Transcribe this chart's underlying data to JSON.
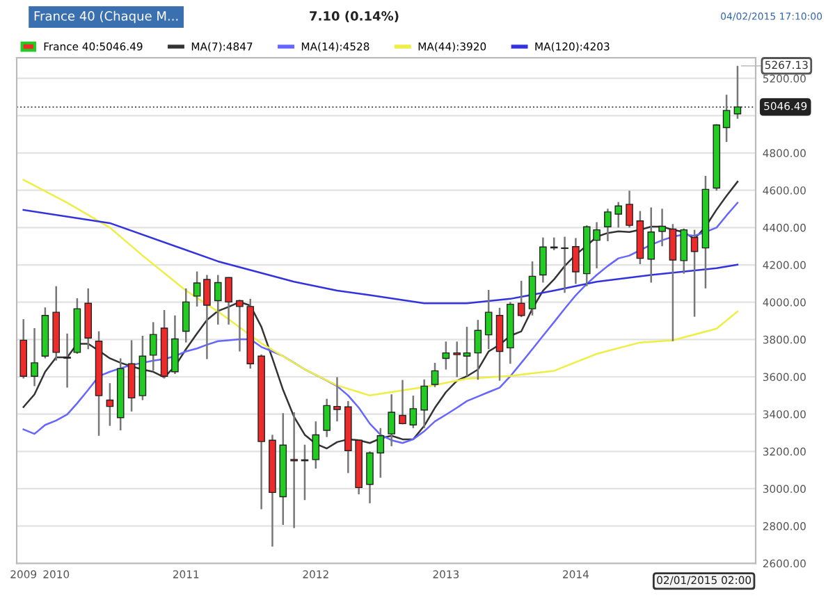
{
  "chart_data": {
    "type": "candlestick",
    "title": "France 40 (Chaque M...",
    "subtitle": "7.10 (0.14%)",
    "x": [
      "2009-10",
      "2009-11",
      "2009-12",
      "2010-01",
      "2010-02",
      "2010-03",
      "2010-04",
      "2010-05",
      "2010-06",
      "2010-07",
      "2010-08",
      "2010-09",
      "2010-10",
      "2010-11",
      "2010-12",
      "2011-01",
      "2011-02",
      "2011-03",
      "2011-04",
      "2011-05",
      "2011-06",
      "2011-07",
      "2011-08",
      "2011-09",
      "2011-10",
      "2011-11",
      "2011-12",
      "2012-01",
      "2012-02",
      "2012-03",
      "2012-04",
      "2012-05",
      "2012-06",
      "2012-07",
      "2012-08",
      "2012-09",
      "2012-10",
      "2012-11",
      "2012-12",
      "2013-01",
      "2013-02",
      "2013-03",
      "2013-04",
      "2013-05",
      "2013-06",
      "2013-07",
      "2013-08",
      "2013-09",
      "2013-10",
      "2013-11",
      "2013-12",
      "2014-01",
      "2014-02",
      "2014-03",
      "2014-04",
      "2014-05",
      "2014-06",
      "2014-07",
      "2014-08",
      "2014-09",
      "2014-10",
      "2014-11",
      "2014-12",
      "2015-01",
      "2015-02",
      "2015-03",
      "2015-04"
    ],
    "series": [
      {
        "name": "France 40:5046.49",
        "ohlc": [
          [
            3796,
            3909,
            3591,
            3603
          ],
          [
            3603,
            3861,
            3550,
            3675
          ],
          [
            3711,
            3972,
            3699,
            3929
          ],
          [
            3946,
            4086,
            3687,
            3731
          ],
          [
            3705,
            3832,
            3542,
            3700
          ],
          [
            3731,
            4021,
            3723,
            3965
          ],
          [
            3994,
            4074,
            3748,
            3808
          ],
          [
            3791,
            3844,
            3284,
            3499
          ],
          [
            3475,
            3566,
            3337,
            3441
          ],
          [
            3381,
            3699,
            3313,
            3644
          ],
          [
            3670,
            3796,
            3414,
            3487
          ],
          [
            3499,
            3820,
            3475,
            3711
          ],
          [
            3716,
            3893,
            3634,
            3827
          ],
          [
            3861,
            3958,
            3591,
            3603
          ],
          [
            3627,
            3929,
            3615,
            3803
          ],
          [
            3844,
            4074,
            3784,
            4001
          ],
          [
            4033,
            4165,
            3977,
            4103
          ],
          [
            4122,
            4146,
            3695,
            3984
          ],
          [
            4008,
            4146,
            3880,
            4105
          ],
          [
            4132,
            4134,
            3880,
            4001
          ],
          [
            4008,
            4013,
            3736,
            3977
          ],
          [
            3977,
            4018,
            3644,
            3670
          ],
          [
            3711,
            3720,
            2890,
            3253
          ],
          [
            3260,
            3289,
            2690,
            2980
          ],
          [
            2957,
            3405,
            2806,
            3234
          ],
          [
            3157,
            3410,
            2789,
            3150
          ],
          [
            3150,
            3236,
            2939,
            3155
          ],
          [
            3156,
            3361,
            3108,
            3289
          ],
          [
            3313,
            3482,
            3277,
            3446
          ],
          [
            3441,
            3598,
            3361,
            3425
          ],
          [
            3439,
            3470,
            3084,
            3204
          ],
          [
            3260,
            3265,
            2970,
            3006
          ],
          [
            3023,
            3200,
            2922,
            3192
          ],
          [
            3192,
            3325,
            3059,
            3284
          ],
          [
            3294,
            3506,
            3228,
            3410
          ],
          [
            3393,
            3583,
            3345,
            3349
          ],
          [
            3342,
            3499,
            3325,
            3429
          ],
          [
            3422,
            3586,
            3325,
            3550
          ],
          [
            3559,
            3675,
            3545,
            3632
          ],
          [
            3699,
            3789,
            3639,
            3728
          ],
          [
            3728,
            3789,
            3598,
            3719
          ],
          [
            3711,
            3868,
            3603,
            3728
          ],
          [
            3728,
            3905,
            3584,
            3849
          ],
          [
            3825,
            4066,
            3748,
            3946
          ],
          [
            3929,
            3970,
            3579,
            3736
          ],
          [
            3755,
            4001,
            3670,
            3989
          ],
          [
            3994,
            4115,
            3920,
            3929
          ],
          [
            3965,
            4219,
            3929,
            4139
          ],
          [
            4146,
            4347,
            4105,
            4296
          ],
          [
            4296,
            4347,
            4279,
            4291
          ],
          [
            4291,
            4351,
            4050,
            4288
          ],
          [
            4298,
            4344,
            4098,
            4163
          ],
          [
            4153,
            4412,
            4086,
            4404
          ],
          [
            4332,
            4429,
            4182,
            4388
          ],
          [
            4404,
            4501,
            4327,
            4484
          ],
          [
            4472,
            4537,
            4400,
            4516
          ],
          [
            4525,
            4598,
            4400,
            4412
          ],
          [
            4436,
            4489,
            4204,
            4235
          ],
          [
            4231,
            4508,
            4105,
            4376
          ],
          [
            4380,
            4501,
            4300,
            4407
          ],
          [
            4392,
            4419,
            3791,
            4226
          ],
          [
            4223,
            4395,
            4153,
            4388
          ],
          [
            4347,
            4388,
            3922,
            4272
          ],
          [
            4291,
            4677,
            4074,
            4605
          ],
          [
            4612,
            4955,
            4598,
            4950
          ],
          [
            4936,
            5112,
            4859,
            5028
          ],
          [
            5010,
            5267.13,
            4984,
            5046.49
          ]
        ],
        "colors": [
          "#ee2b2b",
          "#22cc22",
          "#22cc22",
          "#ee2b2b",
          "#ee2b2b",
          "#22cc22",
          "#ee2b2b",
          "#ee2b2b",
          "#ee2b2b",
          "#22cc22",
          "#ee2b2b",
          "#22cc22",
          "#22cc22",
          "#ee2b2b",
          "#22cc22",
          "#22cc22",
          "#22cc22",
          "#ee2b2b",
          "#22cc22",
          "#ee2b2b",
          "#ee2b2b",
          "#ee2b2b",
          "#ee2b2b",
          "#ee2b2b",
          "#22cc22",
          "#ee2b2b",
          "#22cc22",
          "#22cc22",
          "#22cc22",
          "#ee2b2b",
          "#ee2b2b",
          "#ee2b2b",
          "#22cc22",
          "#22cc22",
          "#22cc22",
          "#ee2b2b",
          "#22cc22",
          "#22cc22",
          "#22cc22",
          "#22cc22",
          "#ee2b2b",
          "#22cc22",
          "#22cc22",
          "#22cc22",
          "#ee2b2b",
          "#22cc22",
          "#ee2b2b",
          "#22cc22",
          "#22cc22",
          "#ee2b2b",
          "#ee2b2b",
          "#ee2b2b",
          "#22cc22",
          "#22cc22",
          "#22cc22",
          "#22cc22",
          "#ee2b2b",
          "#ee2b2b",
          "#22cc22",
          "#22cc22",
          "#ee2b2b",
          "#22cc22",
          "#ee2b2b",
          "#22cc22",
          "#22cc22",
          "#22cc22",
          "#22cc22"
        ]
      },
      {
        "name": "MA(7):4847",
        "type": "line",
        "color": "#333333",
        "x": [
          "2009-10",
          "2009-11",
          "2009-12",
          "2010-01",
          "2010-02",
          "2010-03",
          "2010-04",
          "2010-05",
          "2010-06",
          "2010-07",
          "2010-08",
          "2010-09",
          "2010-10",
          "2010-11",
          "2010-12",
          "2011-01",
          "2011-02",
          "2011-03",
          "2011-04",
          "2011-05",
          "2011-06",
          "2011-07",
          "2011-08",
          "2011-09",
          "2011-10",
          "2011-11",
          "2011-12",
          "2012-01",
          "2012-02",
          "2012-03",
          "2012-04",
          "2012-05",
          "2012-06",
          "2012-07",
          "2012-08",
          "2012-09",
          "2012-10",
          "2012-11",
          "2012-12",
          "2013-01",
          "2013-02",
          "2013-03",
          "2013-04",
          "2013-05",
          "2013-06",
          "2013-07",
          "2013-08",
          "2013-09",
          "2013-10",
          "2013-11",
          "2013-12",
          "2014-01",
          "2014-02",
          "2014-03",
          "2014-04",
          "2014-05",
          "2014-06",
          "2014-07",
          "2014-08",
          "2014-09",
          "2014-10",
          "2014-11",
          "2014-12",
          "2015-01",
          "2015-02",
          "2015-03",
          "2015-04"
        ],
        "values": [
          3438,
          3506,
          3627,
          3704,
          3704,
          3777,
          3777,
          3740,
          3699,
          3675,
          3656,
          3639,
          3627,
          3598,
          3656,
          3748,
          3832,
          3905,
          3953,
          3975,
          4001,
          3982,
          3868,
          3699,
          3530,
          3385,
          3289,
          3241,
          3216,
          3250,
          3265,
          3260,
          3245,
          3270,
          3284,
          3265,
          3265,
          3337,
          3434,
          3518,
          3579,
          3603,
          3639,
          3736,
          3772,
          3820,
          3844,
          3965,
          4062,
          4122,
          4194,
          4255,
          4303,
          4351,
          4371,
          4380,
          4376,
          4388,
          4405,
          4405,
          4388,
          4376,
          4339,
          4405,
          4496,
          4570,
          4646
        ]
      },
      {
        "name": "MA(14):4528",
        "type": "line",
        "color": "#6666ff",
        "x": [
          "2009-10",
          "2009-11",
          "2009-12",
          "2010-01",
          "2010-02",
          "2010-03",
          "2010-04",
          "2010-05",
          "2010-06",
          "2010-07",
          "2010-08",
          "2010-09",
          "2010-10",
          "2010-11",
          "2010-12",
          "2011-01",
          "2011-02",
          "2011-03",
          "2011-04",
          "2011-05",
          "2011-06",
          "2011-07",
          "2011-08",
          "2011-09",
          "2011-10",
          "2011-11",
          "2011-12",
          "2012-01",
          "2012-02",
          "2012-03",
          "2012-04",
          "2012-05",
          "2012-06",
          "2012-07",
          "2012-08",
          "2012-09",
          "2012-10",
          "2012-11",
          "2012-12",
          "2013-01",
          "2013-02",
          "2013-03",
          "2013-04",
          "2013-05",
          "2013-06",
          "2013-07",
          "2013-08",
          "2013-09",
          "2013-10",
          "2013-11",
          "2013-12",
          "2014-01",
          "2014-02",
          "2014-03",
          "2014-04",
          "2014-05",
          "2014-06",
          "2014-07",
          "2014-08",
          "2014-09",
          "2014-10",
          "2014-11",
          "2014-12",
          "2015-01",
          "2015-02",
          "2015-03",
          "2015-04"
        ],
        "values": [
          3318,
          3294,
          3342,
          3366,
          3398,
          3458,
          3530,
          3603,
          3627,
          3646,
          3663,
          3675,
          3687,
          3695,
          3711,
          3736,
          3752,
          3772,
          3791,
          3796,
          3801,
          3801,
          3760,
          3736,
          3711,
          3675,
          3640,
          3610,
          3580,
          3550,
          3500,
          3434,
          3349,
          3289,
          3260,
          3245,
          3265,
          3308,
          3361,
          3397,
          3434,
          3470,
          3494,
          3518,
          3542,
          3603,
          3675,
          3748,
          3820,
          3893,
          3965,
          4037,
          4098,
          4146,
          4194,
          4235,
          4250,
          4279,
          4308,
          4332,
          4351,
          4363,
          4356,
          4376,
          4400,
          4465,
          4533
        ]
      },
      {
        "name": "MA(44):3920",
        "type": "line",
        "color": "#eeee44",
        "x": [
          "2009-10",
          "2010-02",
          "2010-06",
          "2010-09",
          "2011-01",
          "2011-04",
          "2011-08",
          "2011-12",
          "2012-03",
          "2012-06",
          "2012-11",
          "2013-03",
          "2013-07",
          "2013-11",
          "2014-03",
          "2014-07",
          "2014-10",
          "2015-02",
          "2015-04"
        ],
        "values": [
          4656,
          4533,
          4400,
          4250,
          4062,
          3950,
          3780,
          3640,
          3554,
          3500,
          3545,
          3590,
          3605,
          3632,
          3723,
          3784,
          3796,
          3858,
          3950
        ]
      },
      {
        "name": "MA(120):4203",
        "type": "line",
        "color": "#3333dd",
        "x": [
          "2009-10",
          "2010-06",
          "2011-04",
          "2011-11",
          "2012-03",
          "2012-06",
          "2012-11",
          "2013-03",
          "2013-07",
          "2013-11",
          "2014-03",
          "2014-08",
          "2015-02",
          "2015-04"
        ],
        "values": [
          4495,
          4424,
          4219,
          4110,
          4062,
          4038,
          3994,
          3994,
          4018,
          4062,
          4110,
          4146,
          4182,
          4201
        ]
      }
    ],
    "xlim": [
      "2009-09-12",
      "2015-05-22"
    ],
    "xticks": [
      {
        "value": "2009-10-01",
        "label": "2009"
      },
      {
        "value": "2010-01-01",
        "label": "2010"
      },
      {
        "value": "2011-01-01",
        "label": "2011"
      },
      {
        "value": "2012-01-01",
        "label": "2012"
      },
      {
        "value": "2013-01-01",
        "label": "2013"
      },
      {
        "value": "2014-01-01",
        "label": "2014"
      }
    ],
    "ylim": [
      2600,
      5310
    ],
    "yticks": [
      {
        "value": 2600,
        "label": "2600.00"
      },
      {
        "value": 2800,
        "label": "2800.00"
      },
      {
        "value": 3000,
        "label": "3000.00"
      },
      {
        "value": 3200,
        "label": "3200.00"
      },
      {
        "value": 3400,
        "label": "3400.00"
      },
      {
        "value": 3600,
        "label": "3600.00"
      },
      {
        "value": 3800,
        "label": "3800.00"
      },
      {
        "value": 4000,
        "label": "4000.00"
      },
      {
        "value": 4200,
        "label": "4200.00"
      },
      {
        "value": 4400,
        "label": "4400.00"
      },
      {
        "value": 4600,
        "label": "4600.00"
      },
      {
        "value": 4800,
        "label": "4800.00"
      },
      {
        "value": 5000,
        "label": null
      },
      {
        "value": 5200,
        "label": "5200.00"
      }
    ],
    "ref_lines": [
      {
        "axis": "y",
        "value": 5046.49,
        "label": "5046.49",
        "color": "#555555",
        "line_style": "dotted"
      }
    ],
    "annotations": [
      "04/02/2015 17:10:00",
      {
        "text": "5267.13",
        "x": "2015-04",
        "y": 5267.13
      },
      "02/01/2015 02:00"
    ],
    "grid": "y",
    "legend": "top",
    "marker": "none",
    "line_style": "solid"
  }
}
